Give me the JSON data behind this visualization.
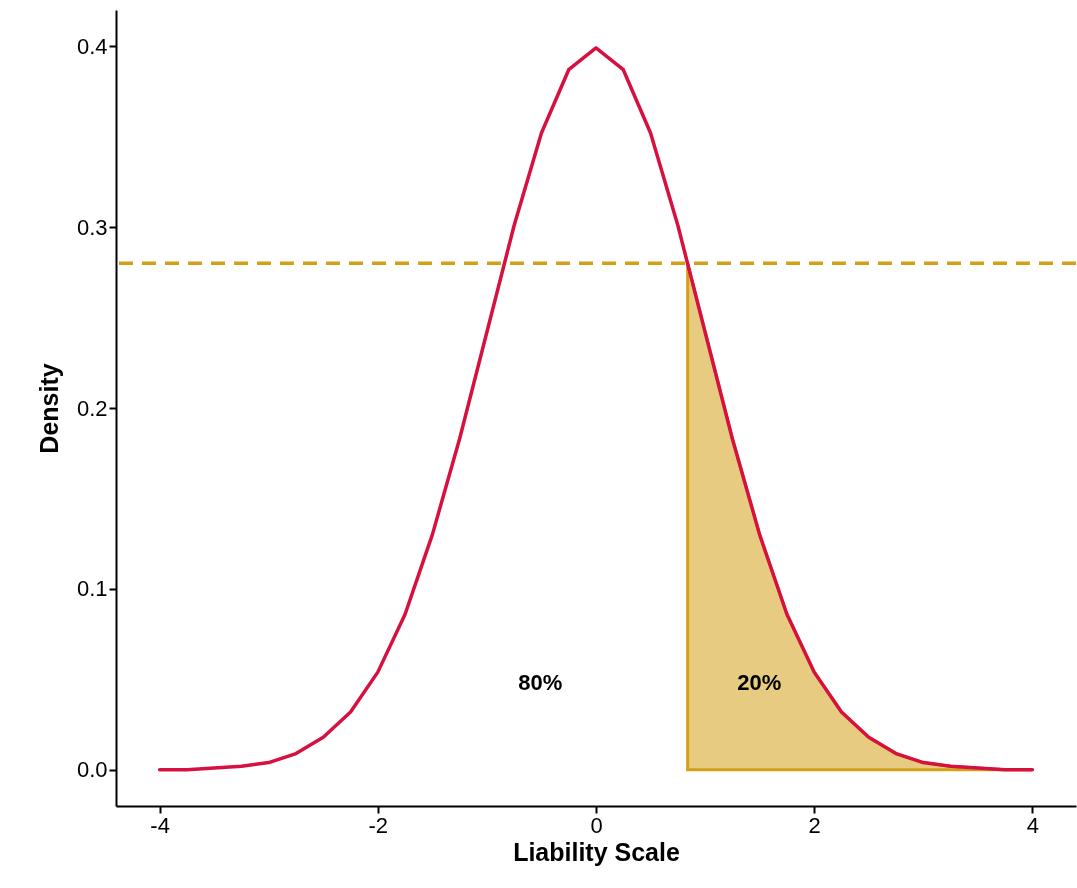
{
  "chart_data": {
    "type": "line",
    "xlabel": "Liability Scale",
    "ylabel": "Density",
    "xlim": [
      -4.4,
      4.4
    ],
    "ylim": [
      -0.02,
      0.42
    ],
    "xticks": [
      -4,
      -2,
      0,
      2,
      4
    ],
    "yticks": [
      {
        "value": 0,
        "label": "0.0"
      },
      {
        "value": 0.1,
        "label": "0.1"
      },
      {
        "value": 0.2,
        "label": "0.2"
      },
      {
        "value": 0.3,
        "label": "0.3"
      },
      {
        "value": 0.4,
        "label": "0.4"
      }
    ],
    "grid": false,
    "series": [
      {
        "color": "#d6103f",
        "x": [
          -4,
          -3.75,
          -3.5,
          -3.25,
          -3,
          -2.75,
          -2.5,
          -2.25,
          -2,
          -1.75,
          -1.5,
          -1.25,
          -1,
          -0.75,
          -0.5,
          -0.25,
          0,
          0.25,
          0.5,
          0.75,
          1,
          1.25,
          1.5,
          1.75,
          2,
          2.25,
          2.5,
          2.75,
          3,
          3.25,
          3.5,
          3.75,
          4
        ],
        "values": [
          0.0,
          0.0,
          0.001,
          0.002,
          0.004,
          0.009,
          0.018,
          0.032,
          0.054,
          0.086,
          0.13,
          0.183,
          0.242,
          0.301,
          0.352,
          0.387,
          0.399,
          0.387,
          0.352,
          0.301,
          0.242,
          0.183,
          0.13,
          0.086,
          0.054,
          0.032,
          0.018,
          0.009,
          0.004,
          0.002,
          0.001,
          0.0,
          0.0
        ]
      },
      {
        "type": "area",
        "color": "#d4a017",
        "x": [
          0.84,
          1,
          1.25,
          1.5,
          1.75,
          2,
          2.25,
          2.5,
          2.75,
          3,
          3.25,
          3.5,
          3.75,
          4
        ],
        "values": [
          0.28,
          0.242,
          0.183,
          0.13,
          0.086,
          0.054,
          0.032,
          0.018,
          0.009,
          0.004,
          0.002,
          0.001,
          0.0,
          0.0
        ]
      }
    ],
    "ref_lines": [
      {
        "axis": "y",
        "value": 0.28,
        "color": "#d4a017",
        "line_style": "dashed"
      }
    ],
    "annotations": [
      "80%",
      "20%"
    ]
  }
}
